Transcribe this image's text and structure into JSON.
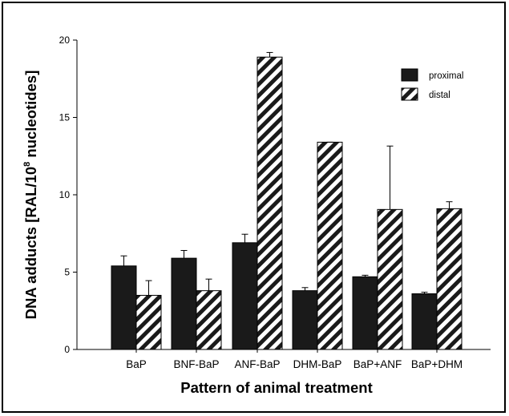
{
  "chart_data": {
    "type": "bar",
    "xlabel": "Pattern of animal treatment",
    "ylabel_main": "DNA adducts [RAL/10",
    "ylabel_sup": "8",
    "ylabel_tail": " nucleotides]",
    "ylim": [
      0,
      20
    ],
    "yticks": [
      "0",
      "5",
      "10",
      "15",
      "20"
    ],
    "grid": false,
    "legend_position": "top-right",
    "categories": [
      "BaP",
      "BNF-BaP",
      "ANF-BaP",
      "DHM-BaP",
      "BaP+ANF",
      "BaP+DHM"
    ],
    "series": [
      {
        "name": "proximal",
        "fill": "solid",
        "color": "#1a1a1a",
        "values": [
          5.4,
          5.9,
          6.9,
          3.8,
          4.7,
          3.6
        ],
        "errors": [
          0.65,
          0.5,
          0.55,
          0.2,
          0.1,
          0.1
        ]
      },
      {
        "name": "distal",
        "fill": "hatched",
        "color": "#1a1a1a",
        "values": [
          3.5,
          3.8,
          18.9,
          13.4,
          9.05,
          9.1
        ],
        "errors": [
          0.95,
          0.75,
          0.3,
          0.0,
          4.1,
          0.45
        ]
      }
    ]
  }
}
